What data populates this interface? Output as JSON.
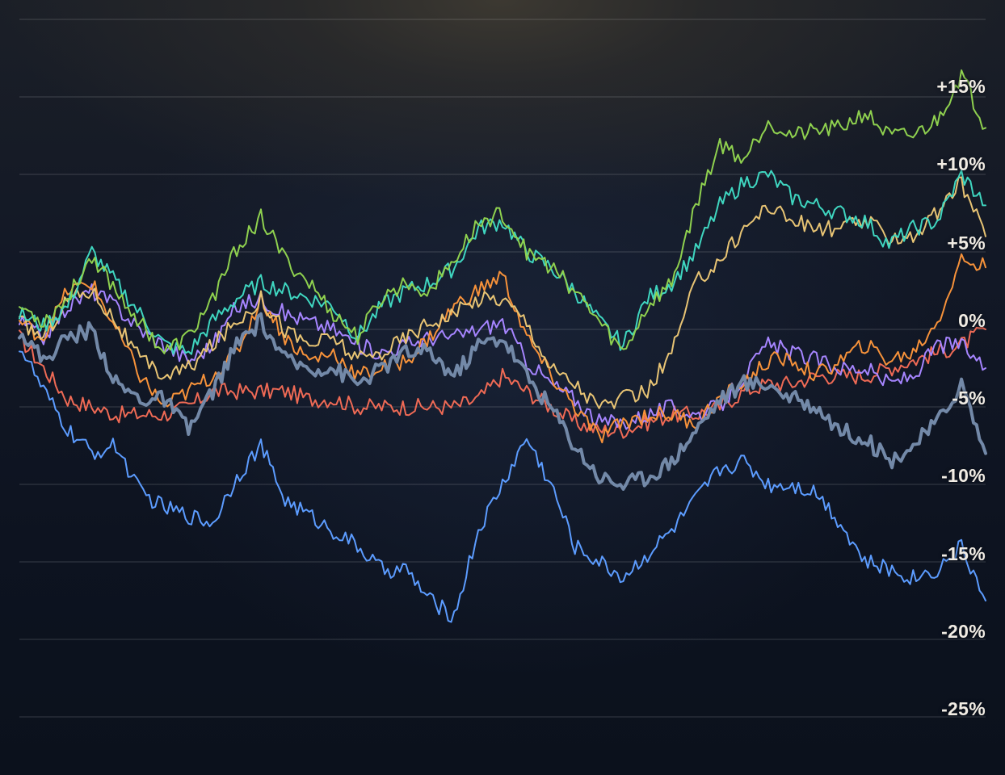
{
  "chart_data": {
    "type": "line",
    "title": "",
    "xlabel": "",
    "ylabel": "",
    "y_axis_position": "right",
    "ylim": [
      -27,
      20
    ],
    "grid": true,
    "legend": "none",
    "y_ticks": [
      {
        "value": 20,
        "label": ""
      },
      {
        "value": 15,
        "label": "+15%"
      },
      {
        "value": 10,
        "label": "+10%"
      },
      {
        "value": 5,
        "label": "+5%"
      },
      {
        "value": 0,
        "label": "0%"
      },
      {
        "value": -5,
        "label": "-5%"
      },
      {
        "value": -10,
        "label": "-10%"
      },
      {
        "value": -15,
        "label": "-15%"
      },
      {
        "value": -20,
        "label": "-20%"
      },
      {
        "value": -25,
        "label": "-25%"
      }
    ],
    "x": [
      0,
      1,
      2,
      3,
      4,
      5,
      6,
      7,
      8,
      9,
      10,
      11,
      12,
      13,
      14,
      15,
      16,
      17,
      18,
      19,
      20,
      21,
      22,
      23,
      24,
      25,
      26,
      27,
      28,
      29,
      30,
      31,
      32,
      33,
      34,
      35,
      36,
      37,
      38,
      39,
      40
    ],
    "series": [
      {
        "name": "green",
        "color": "#8fd14f",
        "width": 2,
        "values": [
          1.5,
          0.5,
          2.0,
          4.8,
          2.5,
          0.5,
          -1.5,
          -0.5,
          2.0,
          5.2,
          7.2,
          4.5,
          3.0,
          1.0,
          -0.5,
          2.0,
          3.0,
          2.5,
          4.5,
          6.8,
          7.5,
          5.0,
          4.0,
          2.5,
          0.5,
          -1.5,
          1.5,
          3.0,
          8.0,
          12.0,
          11.0,
          13.5,
          12.5,
          12.8,
          13.0,
          14.0,
          12.5,
          12.5,
          13.5,
          16.5,
          13.0
        ]
      },
      {
        "name": "teal",
        "color": "#3fd6c0",
        "width": 2,
        "values": [
          1.0,
          0.2,
          1.5,
          5.0,
          3.0,
          1.0,
          -1.0,
          -1.5,
          0.5,
          2.0,
          3.0,
          2.5,
          2.0,
          1.5,
          -0.5,
          1.5,
          2.5,
          3.0,
          4.0,
          6.5,
          7.0,
          5.0,
          4.0,
          2.5,
          0.5,
          -1.0,
          2.0,
          3.0,
          5.0,
          8.0,
          9.5,
          10.0,
          8.5,
          8.0,
          7.5,
          7.0,
          5.5,
          6.5,
          7.0,
          10.0,
          8.0
        ]
      },
      {
        "name": "yellow",
        "color": "#e8c474",
        "width": 2,
        "values": [
          0.5,
          -0.5,
          2.0,
          2.5,
          0.5,
          -2.0,
          -3.0,
          -2.5,
          -1.0,
          0.5,
          2.0,
          0.0,
          -1.0,
          -0.5,
          -2.0,
          -1.5,
          -0.5,
          0.5,
          1.0,
          2.0,
          2.0,
          0.5,
          -2.5,
          -3.5,
          -5.0,
          -4.5,
          -4.0,
          -1.5,
          3.0,
          4.5,
          6.5,
          8.0,
          7.0,
          6.5,
          6.5,
          7.0,
          6.0,
          6.0,
          7.5,
          9.5,
          6.0
        ]
      },
      {
        "name": "orange",
        "color": "#f7923a",
        "width": 2,
        "values": [
          0.5,
          -0.5,
          2.5,
          3.0,
          0.0,
          -3.0,
          -5.0,
          -4.0,
          -3.0,
          -1.5,
          2.0,
          -0.5,
          -2.0,
          -1.5,
          -3.0,
          -2.5,
          -2.0,
          -0.5,
          1.5,
          2.5,
          3.5,
          -0.5,
          -3.0,
          -5.0,
          -7.0,
          -6.0,
          -5.5,
          -5.5,
          -6.0,
          -4.5,
          -3.5,
          -2.0,
          -2.0,
          -3.0,
          -2.0,
          -1.0,
          -2.0,
          -1.5,
          0.5,
          4.5,
          4.0
        ]
      },
      {
        "name": "purple",
        "color": "#a685ff",
        "width": 2,
        "values": [
          0.5,
          -0.5,
          1.5,
          2.5,
          1.5,
          0.0,
          -1.0,
          -2.0,
          -1.0,
          1.5,
          2.0,
          1.0,
          0.5,
          0.0,
          -1.0,
          -1.5,
          -1.0,
          -0.5,
          -0.5,
          0.0,
          0.5,
          -2.0,
          -3.5,
          -4.5,
          -6.0,
          -6.0,
          -5.5,
          -5.0,
          -5.5,
          -5.0,
          -3.0,
          -1.0,
          -1.5,
          -2.0,
          -2.5,
          -2.5,
          -3.5,
          -3.0,
          -1.0,
          -1.0,
          -2.5
        ]
      },
      {
        "name": "red",
        "color": "#ef6a55",
        "width": 2,
        "values": [
          -0.5,
          -2.5,
          -4.5,
          -5.0,
          -5.5,
          -5.5,
          -5.5,
          -5.0,
          -4.0,
          -4.0,
          -4.0,
          -4.0,
          -4.5,
          -4.5,
          -5.0,
          -5.0,
          -5.0,
          -5.0,
          -5.0,
          -4.5,
          -3.0,
          -4.0,
          -5.0,
          -6.0,
          -6.5,
          -6.5,
          -6.0,
          -5.5,
          -5.5,
          -5.0,
          -4.0,
          -3.5,
          -3.5,
          -3.0,
          -3.0,
          -3.0,
          -2.5,
          -2.0,
          -1.5,
          -1.0,
          0.0
        ]
      },
      {
        "name": "slate",
        "color": "#7389a8",
        "width": 4,
        "values": [
          0.0,
          -2.0,
          -0.5,
          0.0,
          -3.5,
          -4.5,
          -4.5,
          -6.5,
          -4.0,
          -1.0,
          0.5,
          -2.0,
          -2.5,
          -2.5,
          -3.5,
          -2.5,
          -1.5,
          -1.5,
          -3.0,
          -1.0,
          -0.5,
          -3.0,
          -5.0,
          -7.5,
          -9.5,
          -10.0,
          -9.5,
          -8.5,
          -6.5,
          -4.5,
          -3.5,
          -3.5,
          -4.5,
          -5.0,
          -6.5,
          -7.0,
          -8.5,
          -7.5,
          -6.0,
          -3.5,
          -8.0
        ]
      },
      {
        "name": "blue",
        "color": "#5c9cff",
        "width": 2,
        "values": [
          -1.0,
          -4.0,
          -6.5,
          -8.0,
          -7.5,
          -10.5,
          -11.5,
          -12.0,
          -12.5,
          -9.5,
          -7.5,
          -11.0,
          -12.0,
          -13.0,
          -14.0,
          -15.5,
          -15.5,
          -17.5,
          -18.5,
          -13.0,
          -10.0,
          -7.0,
          -10.0,
          -14.0,
          -15.0,
          -16.0,
          -14.5,
          -13.0,
          -11.0,
          -9.0,
          -8.5,
          -10.0,
          -10.0,
          -10.5,
          -12.5,
          -15.0,
          -15.5,
          -16.0,
          -15.5,
          -14.0,
          -17.5
        ]
      }
    ]
  }
}
